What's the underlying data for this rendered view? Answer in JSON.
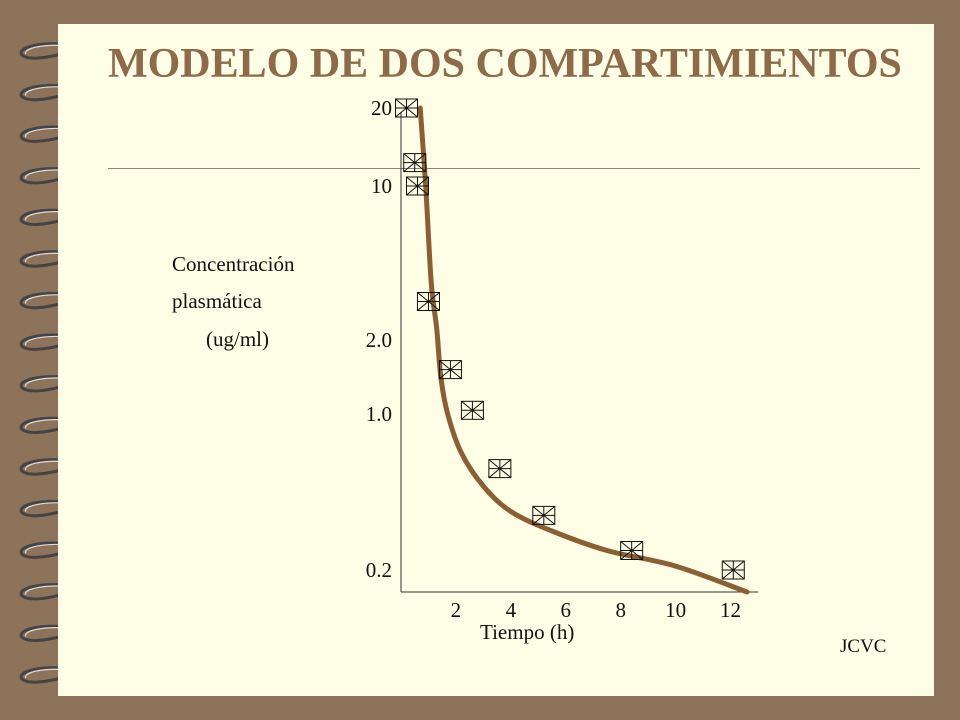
{
  "title": "MODELO DE DOS COMPARTIMIENTOS",
  "credit": "JCVC",
  "colors": {
    "background": "#8c7359",
    "slide": "#fefde5",
    "title": "#8c6a4a",
    "curve": "#8b5e34",
    "marker": "#111111"
  },
  "chart_data": {
    "type": "scatter",
    "title": "",
    "ylabel_lines": [
      "Concentración",
      "plasmática",
      "(ug/ml)"
    ],
    "xlabel": "Tiempo (h)",
    "x_ticks": [
      2,
      4,
      6,
      8,
      10,
      12
    ],
    "x_tick_labels": [
      "2",
      "4",
      "6",
      "8",
      "10",
      "12"
    ],
    "y_ticks": [
      0.2,
      1.0,
      2.0,
      10,
      20
    ],
    "y_tick_labels": [
      "0.2",
      "1.0",
      "2.0",
      "10",
      "20"
    ],
    "xlim": [
      0,
      13
    ],
    "ylim": [
      0.15,
      22
    ],
    "grid": false,
    "series": [
      {
        "kind": "markers",
        "marker": "boxed-asterisk",
        "x": [
          0.2,
          0.5,
          0.6,
          1.0,
          1.8,
          2.6,
          3.6,
          5.2,
          8.4,
          12.1
        ],
        "y": [
          20,
          13,
          10,
          4.0,
          1.6,
          1.05,
          0.72,
          0.48,
          0.3,
          0.2
        ]
      },
      {
        "kind": "fitted-curve",
        "x": [
          0.7,
          0.9,
          1.1,
          1.3,
          1.45,
          1.7,
          2.2,
          3.0,
          4.0,
          5.5,
          7.5,
          10.0,
          12.6
        ],
        "y": [
          20,
          10,
          5.0,
          2.6,
          1.5,
          1.0,
          0.8,
          0.63,
          0.5,
          0.4,
          0.3,
          0.22,
          0.15
        ]
      }
    ]
  }
}
